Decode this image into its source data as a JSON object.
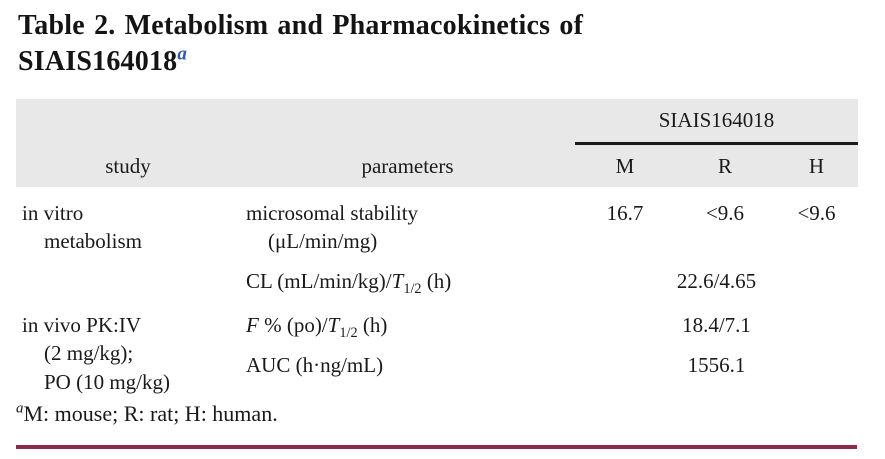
{
  "title": {
    "line1": "Table 2. Metabolism and Pharmacokinetics of",
    "line2": "SIAIS164018",
    "superscript": "a"
  },
  "table": {
    "group_header": "SIAIS164018",
    "columns": {
      "study": "study",
      "parameters": "parameters",
      "m": "M",
      "r": "R",
      "h": "H"
    },
    "rows": {
      "r1": {
        "study": [
          "in vitro",
          "metabolism"
        ],
        "param": [
          "microsomal stability",
          "(μL/min/mg)"
        ],
        "m": "16.7",
        "r": "<9.6",
        "h": "<9.6"
      },
      "r2": {
        "param_prefix": "CL (mL/min/kg)/",
        "param_t": "T",
        "param_sub": "1/2",
        "param_suffix": " (h)",
        "value": "22.6/4.65"
      },
      "r3": {
        "study": [
          "in vivo PK:IV",
          "(2 mg/kg);",
          "PO (10 mg/kg)"
        ],
        "f_italic": "F",
        "f_mid": " % (po)/",
        "f_t": "T",
        "f_sub": "1/2",
        "f_suffix": " (h)",
        "f_value": "18.4/7.1",
        "auc_label": "AUC (h·ng/mL)",
        "auc_value": "1556.1"
      }
    }
  },
  "footnote": {
    "superscript": "a",
    "text": "M: mouse; R: rat; H: human."
  },
  "colors": {
    "header_bg": "#e8e8e8",
    "group_rule": "#1a1a1a",
    "footnote_rule": "#8e2a4e",
    "title_superscript_blue": "#2d57bc"
  }
}
